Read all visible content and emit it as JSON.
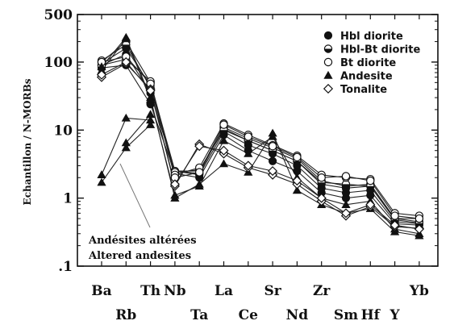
{
  "chart_data": {
    "type": "line",
    "ylabel": "Echantillon / N-MORBs",
    "y_scale": "log",
    "ylim": [
      0.1,
      500
    ],
    "y_ticks": [
      ".1",
      "1",
      "10",
      "100",
      "500"
    ],
    "y_tick_values": [
      0.1,
      1,
      10,
      100,
      500
    ],
    "x_row1": [
      "Ba",
      "Th",
      "Nb",
      "La",
      "Sr",
      "Zr",
      "Yb"
    ],
    "x_row2": [
      "Rb",
      "Ta",
      "Ce",
      "Nd",
      "Sm",
      "Hf",
      "Y"
    ],
    "categories": [
      "Ba",
      "Rb",
      "Th",
      "Nb",
      "Ta",
      "La",
      "Ce",
      "Sr",
      "Nd",
      "Zr",
      "Sm",
      "Hf",
      "Y",
      "Yb"
    ],
    "grid": false,
    "legend_position": "top-right",
    "legend": [
      {
        "name": "Hbl diorite",
        "marker": "filled-circle"
      },
      {
        "name": "Hbl-Bt diorite",
        "marker": "half-circle"
      },
      {
        "name": "Bt diorite",
        "marker": "open-circle"
      },
      {
        "name": "Andesite",
        "marker": "filled-triangle"
      },
      {
        "name": "Tonalite",
        "marker": "open-diamond"
      }
    ],
    "annotation": {
      "lines": [
        "Andésites altérées",
        "Altered andesites"
      ]
    },
    "series": [
      {
        "marker": "filled-circle",
        "values": [
          82,
          90,
          24,
          2.3,
          2.0,
          8.5,
          5.0,
          3.5,
          2.5,
          1.2,
          1.0,
          1.1,
          0.42,
          0.4
        ]
      },
      {
        "marker": "filled-circle",
        "values": [
          90,
          130,
          35,
          2.5,
          2.2,
          9.5,
          6.0,
          4.5,
          3.0,
          1.4,
          1.2,
          1.3,
          0.45,
          0.42
        ]
      },
      {
        "marker": "filled-circle",
        "values": [
          95,
          160,
          45,
          2.5,
          2.5,
          10.5,
          7.0,
          5.0,
          3.5,
          1.6,
          1.4,
          1.5,
          0.5,
          0.5
        ]
      },
      {
        "marker": "half-circle",
        "values": [
          100,
          200,
          50,
          2.5,
          2.3,
          11.0,
          7.5,
          5.5,
          3.8,
          1.8,
          1.5,
          1.6,
          0.5,
          0.45
        ]
      },
      {
        "marker": "half-circle",
        "values": [
          105,
          180,
          42,
          2.4,
          2.6,
          10.0,
          7.0,
          5.0,
          3.5,
          1.7,
          1.6,
          1.5,
          0.48,
          0.43
        ]
      },
      {
        "marker": "open-circle",
        "values": [
          90,
          110,
          52,
          2.2,
          2.8,
          12.5,
          8.5,
          6.0,
          4.2,
          2.2,
          2.0,
          1.9,
          0.6,
          0.55
        ]
      },
      {
        "marker": "open-circle",
        "values": [
          100,
          120,
          48,
          2.0,
          2.4,
          12.0,
          8.0,
          5.8,
          4.0,
          2.0,
          2.1,
          1.8,
          0.55,
          0.5
        ]
      },
      {
        "marker": "filled-triangle",
        "values": [
          85,
          230,
          30,
          1.0,
          1.6,
          3.2,
          2.4,
          9.0,
          1.3,
          0.8,
          0.6,
          0.7,
          0.32,
          0.28
        ]
      },
      {
        "marker": "filled-triangle",
        "values": [
          75,
          220,
          28,
          1.1,
          1.5,
          7.0,
          4.5,
          8.0,
          2.0,
          1.0,
          0.8,
          0.9,
          0.35,
          0.3
        ]
      },
      {
        "marker": "filled-triangle",
        "values": [
          2.2,
          15,
          14,
          null,
          null,
          null,
          null,
          null,
          null,
          null,
          null,
          null,
          null,
          null
        ]
      },
      {
        "marker": "filled-triangle",
        "values": [
          1.7,
          5.5,
          12,
          null,
          null,
          null,
          null,
          null,
          null,
          null,
          null,
          null,
          null,
          null
        ]
      },
      {
        "marker": "filled-triangle",
        "values": [
          null,
          6.5,
          17,
          null,
          null,
          null,
          null,
          null,
          null,
          null,
          null,
          null,
          null,
          null
        ]
      },
      {
        "marker": "open-diamond",
        "values": [
          60,
          95,
          40,
          1.5,
          6.2,
          4.5,
          2.8,
          2.2,
          1.6,
          0.9,
          0.55,
          0.75,
          0.38,
          0.36
        ]
      },
      {
        "marker": "open-diamond",
        "values": [
          65,
          100,
          38,
          1.6,
          5.8,
          5.0,
          3.0,
          2.5,
          1.8,
          1.0,
          0.6,
          0.8,
          0.4,
          0.35
        ]
      }
    ]
  }
}
